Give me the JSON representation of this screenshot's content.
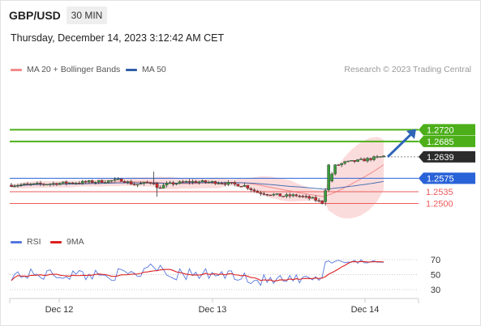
{
  "header": {
    "pair": "GBP/USD",
    "timeframe": "30 MIN",
    "datetime": "Thursday, December 14, 2023 3:12:42 AM CET"
  },
  "legend": {
    "ma20": "MA 20 + Bollinger Bands",
    "ma50": "MA 50",
    "credit": "Research © 2023 Trading Central",
    "rsi": "RSI",
    "rsi_ma": "9MA"
  },
  "colors": {
    "resistance": "#4caf1a",
    "current": "#2b2b2b",
    "pivot": "#2a63d8",
    "support": "#ec5a5a",
    "ma20_band": "#f6b2b2",
    "ma50": "#4a6fb3",
    "candle_up": "#3a9a3a",
    "candle_down": "#cc2a2a",
    "arrow": "#2e64b8",
    "rsi": "#5577dd",
    "rsi_ma": "#dd1f1f"
  },
  "chart_data": {
    "type": "candlestick",
    "title": "GBP/USD 30 MIN",
    "ylim": [
      1.2485,
      1.2735
    ],
    "levels": [
      {
        "value": 1.272,
        "label": "1.2720",
        "kind": "resistance"
      },
      {
        "value": 1.2685,
        "label": "1.2685",
        "kind": "resistance"
      },
      {
        "value": 1.2639,
        "label": "1.2639",
        "kind": "current"
      },
      {
        "value": 1.2575,
        "label": "1.2575",
        "kind": "pivot"
      },
      {
        "value": 1.2535,
        "label": "1.2535",
        "kind": "support"
      },
      {
        "value": 1.25,
        "label": "1.2500",
        "kind": "support"
      }
    ],
    "x_ticks": [
      "Dec 12",
      "Dec 13",
      "Dec 14"
    ],
    "rsi": {
      "levels": [
        70,
        50,
        30
      ],
      "labels": [
        "70",
        "50",
        "30"
      ]
    },
    "annotation": "arrow from current price toward 1.2720"
  }
}
